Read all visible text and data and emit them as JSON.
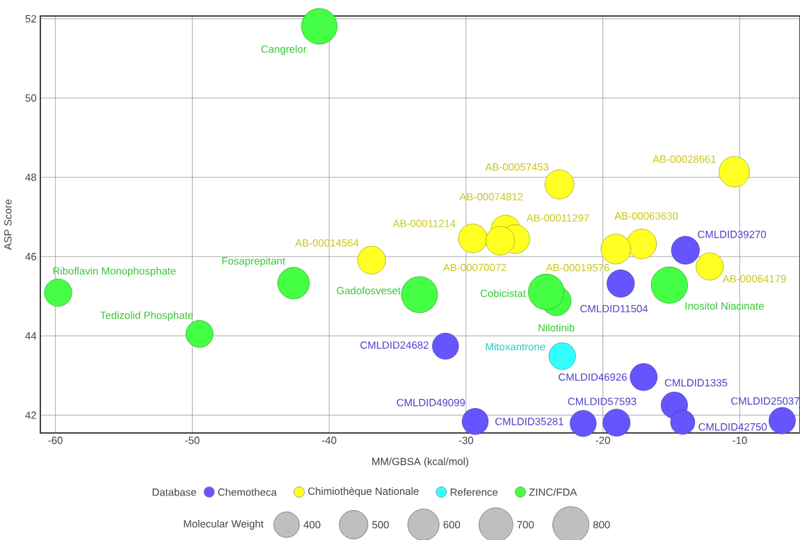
{
  "chart_data": {
    "type": "bubble",
    "xlabel": "MM/GBSA (kcal/mol)",
    "ylabel": "ASP Score",
    "legend_title": "Database",
    "legend": "bottom",
    "grid": true,
    "xlim": [
      -61.1,
      -5.6
    ],
    "ylim": [
      41.55,
      52.07
    ],
    "xticks": [
      -60,
      -50,
      -40,
      -30,
      -20,
      -10
    ],
    "yticks": [
      42,
      44,
      46,
      48,
      50,
      52
    ],
    "size_legend": [
      {
        "value": 400,
        "label": "400"
      },
      {
        "value": 500,
        "label": "500"
      },
      {
        "value": 600,
        "label": "600"
      },
      {
        "value": 700,
        "label": "700"
      },
      {
        "value": 800,
        "label": "800"
      }
    ],
    "series": [
      {
        "name": "Chemotheca",
        "color": "#6655ff",
        "x": [
          -13.97,
          -18.7,
          -31.5,
          -17.02,
          -14.78,
          -29.33,
          -21.44,
          -19.0,
          -14.17,
          -6.9
        ],
        "values": [
          46.16,
          45.32,
          43.74,
          42.96,
          42.25,
          41.84,
          41.79,
          41.81,
          41.82,
          41.86
        ],
        "sizes": [
          480,
          460,
          420,
          450,
          430,
          420,
          420,
          450,
          360,
          430
        ]
      },
      {
        "name": "Chimiothèque Nationale",
        "color": "#ffff22",
        "x": [
          -36.9,
          -29.5,
          -27.1,
          -26.4,
          -27.5,
          -23.17,
          -10.4,
          -17.17,
          -19.05,
          -12.19
        ],
        "values": [
          45.91,
          46.46,
          46.67,
          46.44,
          46.4,
          47.82,
          48.14,
          46.32,
          46.19,
          45.75
        ],
        "sizes": [
          480,
          510,
          540,
          510,
          510,
          520,
          570,
          540,
          550,
          460
        ]
      },
      {
        "name": "Reference",
        "color": "#33ffff",
        "x": [
          -22.97
        ],
        "values": [
          43.49
        ],
        "sizes": [
          440
        ]
      },
      {
        "name": "ZINC/FDA",
        "color": "#44ff44",
        "x": [
          -40.72,
          -59.8,
          -49.47,
          -42.6,
          -33.4,
          -23.4,
          -24.14,
          -15.14
        ],
        "values": [
          51.81,
          45.09,
          44.05,
          45.33,
          45.04,
          44.88,
          45.11,
          45.28
        ],
        "sizes": [
          780,
          460,
          450,
          610,
          800,
          530,
          780,
          810
        ]
      }
    ],
    "annotations": [
      {
        "text": "CMLDID39270",
        "x": -13.97,
        "y": 46.16
      },
      {
        "text": "CMLDID11504",
        "x": -18.7,
        "y": 45.32
      },
      {
        "text": "CMLDID24682",
        "x": -31.5,
        "y": 43.74
      },
      {
        "text": "CMLDID46926",
        "x": -17.02,
        "y": 42.96
      },
      {
        "text": "CMLDID1335",
        "x": -14.78,
        "y": 42.25
      },
      {
        "text": "CMLDID49099",
        "x": -29.33,
        "y": 41.84
      },
      {
        "text": "CMLDID35281",
        "x": -21.44,
        "y": 41.79
      },
      {
        "text": "CMLDID57593",
        "x": -19.0,
        "y": 41.81
      },
      {
        "text": "CMLDID42750",
        "x": -14.17,
        "y": 41.82
      },
      {
        "text": "CMLDID25037",
        "x": -6.9,
        "y": 41.86
      },
      {
        "text": "AB-00014564",
        "x": -36.9,
        "y": 45.91
      },
      {
        "text": "AB-00011214",
        "x": -29.5,
        "y": 46.46
      },
      {
        "text": "AB-00074812",
        "x": -27.1,
        "y": 46.67
      },
      {
        "text": "AB-00011297",
        "x": -26.4,
        "y": 46.44
      },
      {
        "text": "AB-00070072",
        "x": -27.5,
        "y": 46.4
      },
      {
        "text": "AB-00057453",
        "x": -23.17,
        "y": 47.82
      },
      {
        "text": "AB-00028661",
        "x": -10.4,
        "y": 48.14
      },
      {
        "text": "AB-00063630",
        "x": -17.17,
        "y": 46.32
      },
      {
        "text": "AB-00019576",
        "x": -19.05,
        "y": 46.19
      },
      {
        "text": "AB-00064179",
        "x": -12.19,
        "y": 45.75
      },
      {
        "text": "Mitoxantrone",
        "x": -22.97,
        "y": 43.49
      },
      {
        "text": "Cangrelor",
        "x": -40.72,
        "y": 51.81
      },
      {
        "text": "Riboflavin Monophosphate",
        "x": -59.8,
        "y": 45.09
      },
      {
        "text": "Tedizolid Phosphate",
        "x": -49.47,
        "y": 44.05
      },
      {
        "text": "Fosaprepitant",
        "x": -42.6,
        "y": 45.33
      },
      {
        "text": "Gadofosveset",
        "x": -33.4,
        "y": 45.04
      },
      {
        "text": "Nilotinib",
        "x": -23.4,
        "y": 44.88
      },
      {
        "text": "Cobicistat",
        "x": -24.14,
        "y": 45.11
      },
      {
        "text": "Inositol Niacinate",
        "x": -15.14,
        "y": 45.28
      },
      "Molecular Weight"
    ]
  }
}
